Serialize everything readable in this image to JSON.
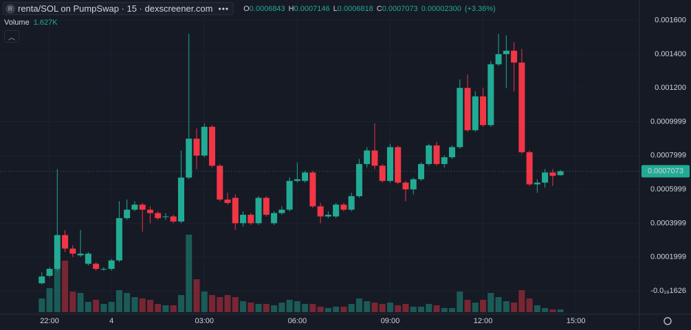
{
  "chart_data": {
    "type": "candlestick",
    "title": "renta/SOL on PumpSwap · 15 · dexscreener.com",
    "symbol_icon": "R",
    "ohlc_prefixes": [
      "O",
      "H",
      "L",
      "C"
    ],
    "change": {
      "value": 2.3e-05,
      "label": "0.00002300"
    },
    "change_pct": {
      "value": 3.36,
      "label": "(+3.36%)"
    },
    "volume_label": "Volume",
    "volume_last": {
      "value": 1627,
      "label": "1.627K"
    },
    "up_color": "#22ab94",
    "down_color": "#f23645",
    "grid": true,
    "open": [
      4.5e-05,
      8.9e-05,
      0.00013,
      0.00033,
      0.00025,
      0.00021,
      0.00016,
      0.00016,
      0.00013,
      0.00013,
      0.00018,
      0.00043,
      0.00048,
      0.00051,
      0.00048,
      0.00046,
      0.00044,
      0.00044,
      0.00041,
      0.00067,
      0.0009,
      0.0008,
      0.00097,
      0.00074,
      0.00054,
      0.00055,
      0.0004,
      0.00045,
      0.0004,
      0.00055,
      0.0004,
      0.00046,
      0.00048,
      0.00065,
      0.00065,
      0.0007,
      0.0005,
      0.00044,
      0.00044,
      0.00051,
      0.00048,
      0.00056,
      0.00075,
      0.00083,
      0.00074,
      0.00065,
      0.00085,
      0.00064,
      0.0006,
      0.00066,
      0.00075,
      0.00086,
      0.00075,
      0.00079,
      0.00085,
      0.0012,
      0.00095,
      0.00115,
      0.00098,
      0.00134,
      0.0014,
      0.00142,
      0.00135,
      0.00082,
      0.00063,
      0.00064,
      0.0007,
      0.0006843
    ],
    "high": [
      0.00011,
      0.00014,
      0.00072,
      0.00036,
      0.00027,
      0.00036,
      0.00023,
      0.00017,
      0.00014,
      0.00019,
      0.00053,
      0.00054,
      0.00053,
      0.00052,
      0.0005,
      0.00047,
      0.00046,
      0.00045,
      0.00083,
      0.00152,
      0.00096,
      0.00099,
      0.00098,
      0.00075,
      0.00058,
      0.00057,
      0.00047,
      0.00046,
      0.00056,
      0.00056,
      0.00047,
      0.0005,
      0.00067,
      0.00076,
      0.00071,
      0.00071,
      0.00052,
      0.00047,
      0.00052,
      0.00052,
      0.00058,
      0.00078,
      0.00085,
      0.00099,
      0.00075,
      0.00087,
      0.00086,
      0.00065,
      0.00067,
      0.00076,
      0.00087,
      0.00088,
      0.0008,
      0.00086,
      0.00125,
      0.00128,
      0.00118,
      0.0012,
      0.00136,
      0.00152,
      0.00151,
      0.00147,
      0.00143,
      0.00083,
      0.00066,
      0.00072,
      0.00072,
      0.0007146
    ],
    "low": [
      3.7e-05,
      8e-05,
      0.00012,
      0.00023,
      0.0002,
      0.0002,
      0.00015,
      0.00012,
      0.00012,
      0.00012,
      0.00017,
      0.00042,
      0.00047,
      0.00035,
      0.0004,
      0.00042,
      0.00042,
      0.0004,
      0.0004,
      0.00066,
      0.00072,
      0.00079,
      0.00073,
      0.00053,
      0.00051,
      0.00036,
      0.00038,
      0.00039,
      0.00039,
      0.00044,
      0.00039,
      0.00045,
      0.00047,
      0.00064,
      0.00064,
      0.00049,
      0.0004,
      0.00043,
      0.00043,
      0.00047,
      0.00047,
      0.00055,
      0.00073,
      0.00072,
      0.00064,
      0.00064,
      0.00063,
      0.00053,
      0.00057,
      0.00065,
      0.00074,
      0.00074,
      0.00073,
      0.00078,
      0.00084,
      0.00094,
      0.00094,
      0.00097,
      0.00097,
      0.00133,
      0.0012,
      0.00118,
      0.00081,
      0.00062,
      0.00058,
      0.00061,
      0.00062,
      0.0006818
    ],
    "close": [
      8.5e-05,
      0.00013,
      0.00033,
      0.00025,
      0.00022,
      0.00022,
      0.00022,
      0.00013,
      0.00013,
      0.00018,
      0.00043,
      0.00048,
      0.00051,
      0.00048,
      0.00046,
      0.00043,
      0.00044,
      0.00041,
      0.00067,
      0.0009,
      0.0008,
      0.00097,
      0.00074,
      0.00054,
      0.00052,
      0.0004,
      0.00045,
      0.0004,
      0.00055,
      0.00045,
      0.00046,
      0.00048,
      0.00065,
      0.00066,
      0.0007,
      0.0005,
      0.00044,
      0.00045,
      0.00051,
      0.00048,
      0.00056,
      0.00075,
      0.00083,
      0.00074,
      0.00065,
      0.00085,
      0.00064,
      0.0006,
      0.00066,
      0.00075,
      0.00086,
      0.00075,
      0.00079,
      0.00085,
      0.0012,
      0.00095,
      0.00115,
      0.00098,
      0.00134,
      0.0014,
      0.00142,
      0.00135,
      0.00082,
      0.00063,
      0.00064,
      0.0007,
      0.00068,
      0.0007073
    ],
    "volume": [
      8000,
      14000,
      30000,
      30000,
      12000,
      11200,
      6000,
      7200,
      4800,
      6000,
      12800,
      11200,
      8800,
      8000,
      7200,
      4800,
      4000,
      4000,
      10000,
      45200,
      19200,
      12000,
      10000,
      8800,
      10000,
      8800,
      6400,
      5600,
      4800,
      4800,
      4000,
      5600,
      7200,
      6400,
      4800,
      4800,
      3200,
      2400,
      3200,
      3200,
      4800,
      8000,
      6400,
      5600,
      4800,
      5600,
      4000,
      4800,
      3200,
      3200,
      4800,
      4000,
      2400,
      2400,
      12000,
      7200,
      5600,
      7200,
      11200,
      8800,
      6400,
      5600,
      12800,
      8000,
      4000,
      2400,
      1600,
      1627
    ],
    "xlim": [
      -5.4,
      77.2
    ],
    "xticks": [
      {
        "value": 1,
        "label": "22:00"
      },
      {
        "value": 9,
        "label": "4"
      },
      {
        "value": 21,
        "label": "03:00"
      },
      {
        "value": 33,
        "label": "06:00"
      },
      {
        "value": 45,
        "label": "09:00"
      },
      {
        "value": 57,
        "label": "12:00"
      },
      {
        "value": 69,
        "label": "15:00"
      }
    ],
    "ylim": [
      -0.000126,
      0.00172
    ],
    "yticks": [
      {
        "value": 0.0016,
        "label": "0.001600"
      },
      {
        "value": 0.0014,
        "label": "0.001400"
      },
      {
        "value": 0.0012,
        "label": "0.001200"
      },
      0.0009999,
      0.0007999,
      0.0005999,
      0.0003999,
      0.0001999,
      {
        "value": -1.626e-19,
        "label": "-0.0₁₈1626"
      }
    ],
    "volume_lim": [
      0,
      50000
    ]
  }
}
